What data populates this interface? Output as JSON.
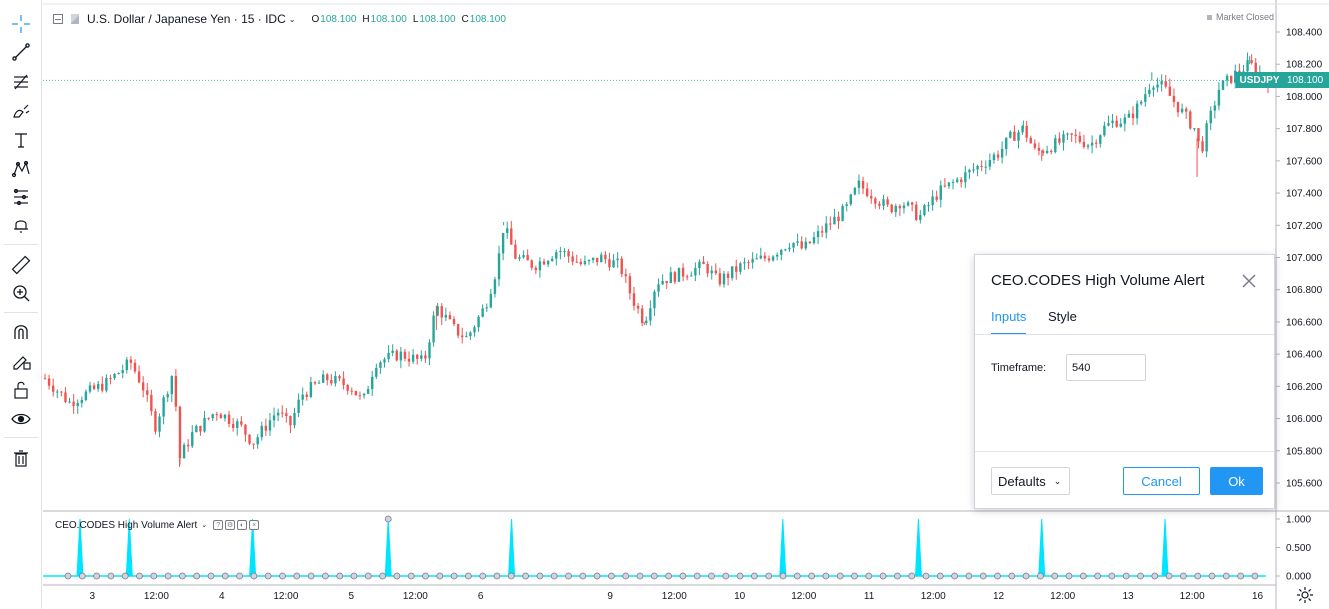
{
  "symbol": {
    "title": "U.S. Dollar / Japanese Yen · 15 · IDC",
    "ohlc": [
      {
        "label": "O",
        "value": "108.100"
      },
      {
        "label": "H",
        "value": "108.100"
      },
      {
        "label": "L",
        "value": "108.100"
      },
      {
        "label": "C",
        "value": "108.100"
      }
    ],
    "market_status": "Market Closed",
    "ticker": "USDJPY",
    "last_price": "108.100",
    "last_price_value": 108.1
  },
  "colors": {
    "up": "#26a69a",
    "down": "#ef5350",
    "accent": "#2196f3",
    "indicator": "#00e5ff"
  },
  "toolbar": {
    "items": [
      {
        "icon": "crosshair-icon"
      },
      {
        "icon": "trend-line-icon"
      },
      {
        "icon": "fib-retracement-icon"
      },
      {
        "icon": "brush-icon"
      },
      {
        "icon": "text-icon"
      },
      {
        "icon": "pattern-icon"
      },
      {
        "icon": "prediction-icon"
      },
      {
        "icon": "alert-icon"
      },
      {
        "icon": "ruler-icon"
      },
      {
        "icon": "zoom-in-icon"
      },
      {
        "icon": "magnet-icon"
      },
      {
        "icon": "stay-in-drawing-mode-icon"
      },
      {
        "icon": "lock-icon"
      },
      {
        "icon": "eye-icon"
      },
      {
        "icon": "trash-icon"
      }
    ]
  },
  "chart_data": [
    {
      "type": "candlestick",
      "price_axis": {
        "min": 105.6,
        "max": 108.4,
        "ticks": [
          "108.400",
          "108.200",
          "108.000",
          "107.800",
          "107.600",
          "107.400",
          "107.200",
          "107.000",
          "106.800",
          "106.600",
          "106.400",
          "106.200",
          "106.000",
          "105.800",
          "105.600"
        ]
      },
      "series": {
        "name": "USDJPY",
        "path_points": [
          [
            0,
            106.25
          ],
          [
            0.02,
            106.1
          ],
          [
            0.05,
            106.22
          ],
          [
            0.07,
            106.35
          ],
          [
            0.08,
            106.2
          ],
          [
            0.09,
            105.95
          ],
          [
            0.105,
            106.3
          ],
          [
            0.11,
            105.75
          ],
          [
            0.12,
            105.9
          ],
          [
            0.14,
            106.05
          ],
          [
            0.16,
            105.95
          ],
          [
            0.17,
            105.85
          ],
          [
            0.19,
            106.05
          ],
          [
            0.2,
            105.95
          ],
          [
            0.21,
            106.15
          ],
          [
            0.23,
            106.25
          ],
          [
            0.25,
            106.2
          ],
          [
            0.26,
            106.1
          ],
          [
            0.27,
            106.35
          ],
          [
            0.29,
            106.4
          ],
          [
            0.31,
            106.35
          ],
          [
            0.32,
            106.7
          ],
          [
            0.335,
            106.55
          ],
          [
            0.345,
            106.5
          ],
          [
            0.36,
            106.7
          ],
          [
            0.37,
            106.95
          ],
          [
            0.375,
            107.2
          ],
          [
            0.385,
            107.0
          ],
          [
            0.4,
            106.95
          ],
          [
            0.42,
            107.05
          ],
          [
            0.44,
            106.95
          ],
          [
            0.455,
            107.0
          ],
          [
            0.47,
            106.95
          ],
          [
            0.48,
            106.75
          ],
          [
            0.49,
            106.6
          ],
          [
            0.5,
            106.85
          ],
          [
            0.52,
            106.9
          ],
          [
            0.54,
            106.95
          ],
          [
            0.55,
            106.85
          ],
          [
            0.57,
            106.95
          ],
          [
            0.59,
            107.0
          ],
          [
            0.61,
            107.1
          ],
          [
            0.62,
            107.05
          ],
          [
            0.64,
            107.2
          ],
          [
            0.655,
            107.3
          ],
          [
            0.665,
            107.45
          ],
          [
            0.675,
            107.4
          ],
          [
            0.69,
            107.3
          ],
          [
            0.7,
            107.35
          ],
          [
            0.715,
            107.25
          ],
          [
            0.73,
            107.4
          ],
          [
            0.75,
            107.5
          ],
          [
            0.76,
            107.55
          ],
          [
            0.78,
            107.65
          ],
          [
            0.79,
            107.75
          ],
          [
            0.8,
            107.8
          ],
          [
            0.81,
            107.65
          ],
          [
            0.825,
            107.7
          ],
          [
            0.84,
            107.75
          ],
          [
            0.855,
            107.7
          ],
          [
            0.865,
            107.8
          ],
          [
            0.875,
            107.85
          ],
          [
            0.885,
            107.85
          ],
          [
            0.895,
            107.95
          ],
          [
            0.905,
            108.1
          ],
          [
            0.915,
            108.05
          ],
          [
            0.925,
            107.95
          ],
          [
            0.935,
            107.85
          ],
          [
            0.94,
            107.8
          ],
          [
            0.945,
            107.65
          ],
          [
            0.95,
            107.8
          ],
          [
            0.96,
            108.05
          ],
          [
            0.975,
            108.15
          ],
          [
            0.985,
            108.2
          ],
          [
            1.0,
            108.1
          ]
        ],
        "down_spikes": [
          [
            0.11,
            105.7
          ],
          [
            0.32,
            106.55
          ],
          [
            0.49,
            106.58
          ],
          [
            0.815,
            107.6
          ],
          [
            0.942,
            107.5
          ]
        ],
        "up_spikes": [
          [
            0.375,
            107.22
          ],
          [
            0.665,
            107.48
          ],
          [
            0.8,
            107.85
          ],
          [
            0.905,
            108.15
          ],
          [
            0.985,
            108.25
          ]
        ]
      },
      "time_axis": [
        {
          "label": "3",
          "pos": 0.04
        },
        {
          "label": "12:00",
          "pos": 0.092
        },
        {
          "label": "4",
          "pos": 0.145
        },
        {
          "label": "12:00",
          "pos": 0.197
        },
        {
          "label": "5",
          "pos": 0.25
        },
        {
          "label": "12:00",
          "pos": 0.302
        },
        {
          "label": "6",
          "pos": 0.355
        },
        {
          "label": "9",
          "pos": 0.46
        },
        {
          "label": "12:00",
          "pos": 0.512
        },
        {
          "label": "10",
          "pos": 0.565
        },
        {
          "label": "12:00",
          "pos": 0.617
        },
        {
          "label": "11",
          "pos": 0.67
        },
        {
          "label": "12:00",
          "pos": 0.722
        },
        {
          "label": "12",
          "pos": 0.775
        },
        {
          "label": "12:00",
          "pos": 0.827
        },
        {
          "label": "13",
          "pos": 0.88
        },
        {
          "label": "12:00",
          "pos": 0.932
        },
        {
          "label": "16",
          "pos": 0.985
        }
      ]
    },
    {
      "type": "line",
      "title": "CEO.CODES High Volume Alert",
      "value_axis": {
        "min": 0,
        "max": 1,
        "ticks": [
          "1.000",
          "0.500",
          "0.000"
        ]
      },
      "spikes": [
        0.03,
        0.07,
        0.17,
        0.28,
        0.38,
        0.6,
        0.71,
        0.81,
        0.91
      ],
      "marker_spike": 0.28
    }
  ],
  "indicator_legend": {
    "title": "CEO.CODES High Volume Alert",
    "buttons": [
      "?",
      "⚙",
      "◐",
      "×"
    ]
  },
  "dialog": {
    "title": "CEO.CODES High Volume Alert",
    "tabs": {
      "inputs": "Inputs",
      "style": "Style"
    },
    "timeframe_label": "Timeframe:",
    "timeframe_value": "540",
    "defaults_label": "Defaults",
    "cancel_label": "Cancel",
    "ok_label": "Ok"
  }
}
